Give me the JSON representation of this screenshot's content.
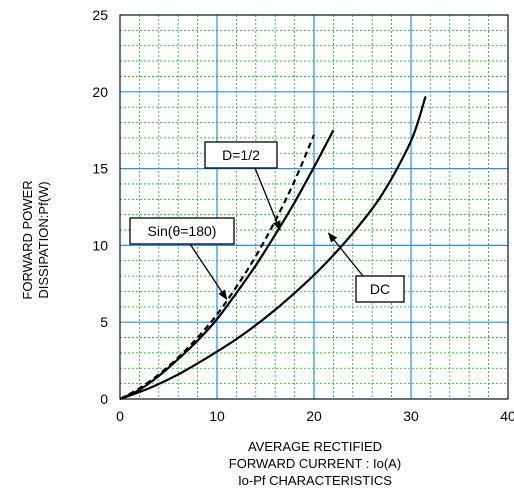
{
  "chart_data": {
    "type": "line",
    "title": "Io-Pf CHARACTERISTICS",
    "xlabel": [
      "AVERAGE RECTIFIED",
      "FORWARD CURRENT : Io(A)"
    ],
    "ylabel": [
      "FORWARD POWER",
      "DISSIPATION:Pf(W)"
    ],
    "xlim": [
      0,
      40
    ],
    "ylim": [
      0,
      25
    ],
    "xticks": [
      "0",
      "10",
      "20",
      "30",
      "40"
    ],
    "yticks": [
      "0",
      "5",
      "10",
      "15",
      "20",
      "25"
    ],
    "grid": {
      "major": true,
      "minor": true,
      "major_color": "#1e90ff",
      "minor_color": "#00c000"
    },
    "series": [
      {
        "name": "D=1/2",
        "style": "solid",
        "x": [
          0,
          2,
          4,
          6,
          8,
          10,
          12,
          14,
          16,
          18,
          20,
          22
        ],
        "y": [
          0,
          0.6,
          1.5,
          2.6,
          3.8,
          5.2,
          6.9,
          8.7,
          10.7,
          12.8,
          15.1,
          17.5
        ]
      },
      {
        "name": "Sin(θ=180)",
        "style": "dashed",
        "x": [
          0,
          2,
          4,
          6,
          8,
          10,
          12,
          14,
          16,
          18,
          20
        ],
        "y": [
          0,
          0.7,
          1.6,
          2.7,
          4.0,
          5.5,
          7.3,
          9.3,
          11.6,
          14.2,
          17.2
        ]
      },
      {
        "name": "DC",
        "style": "solid",
        "x": [
          0,
          3,
          6,
          9,
          12,
          15,
          18,
          21,
          24,
          27,
          30,
          31.5
        ],
        "y": [
          0,
          0.7,
          1.6,
          2.7,
          3.9,
          5.3,
          6.9,
          8.7,
          10.8,
          13.3,
          16.8,
          19.7
        ]
      }
    ],
    "annotations": [
      {
        "text": "D=1/2",
        "points_to": [
          16.5,
          11
        ]
      },
      {
        "text": "Sin(θ=180)",
        "points_to": [
          11,
          6.5
        ]
      },
      {
        "text": "DC",
        "points_to": [
          21.5,
          10.8
        ]
      }
    ],
    "colors": {
      "line": "#000000",
      "background": "#ffffff"
    }
  }
}
